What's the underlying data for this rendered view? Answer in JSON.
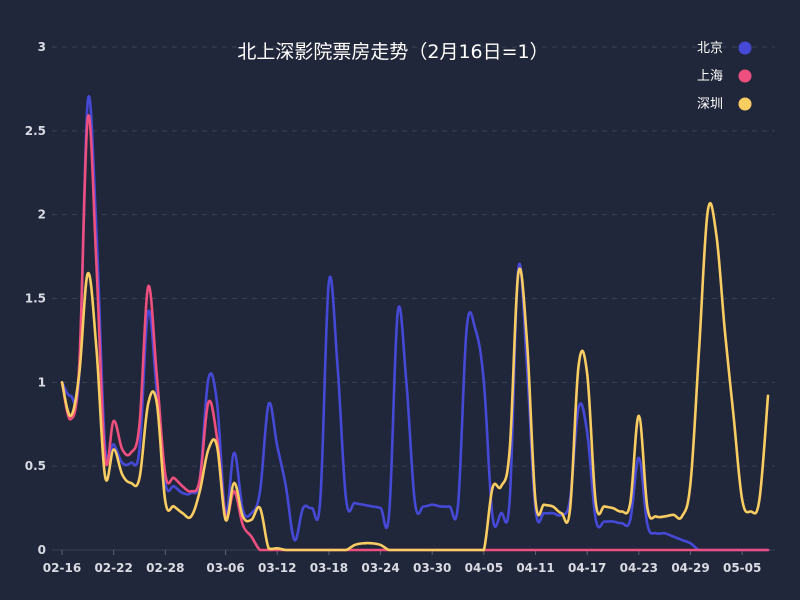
{
  "chart_data": {
    "type": "line",
    "title": "北上深影院票房走势（2月16日=1）",
    "xlabel": "",
    "ylabel": "",
    "ylim": [
      0,
      3
    ],
    "yticks": [
      "0",
      "0.5",
      "1",
      "1.5",
      "2",
      "2.5",
      "3"
    ],
    "grid": true,
    "legend_position": "top-right",
    "x_tick_labels": [
      "02-16",
      "02-22",
      "02-28",
      "03-06",
      "03-12",
      "03-18",
      "03-24",
      "03-30",
      "04-05",
      "04-11",
      "04-17",
      "04-23",
      "04-29",
      "05-05"
    ],
    "x": [
      "02-16",
      "02-17",
      "02-18",
      "02-19",
      "02-20",
      "02-21",
      "02-22",
      "02-23",
      "02-24",
      "02-25",
      "02-26",
      "02-27",
      "02-28",
      "02-29",
      "03-01",
      "03-02",
      "03-03",
      "03-04",
      "03-05",
      "03-06",
      "03-07",
      "03-08",
      "03-09",
      "03-10",
      "03-11",
      "03-12",
      "03-13",
      "03-14",
      "03-15",
      "03-16",
      "03-17",
      "03-18",
      "03-19",
      "03-20",
      "03-21",
      "03-22",
      "03-23",
      "03-24",
      "03-25",
      "03-26",
      "03-27",
      "03-28",
      "03-29",
      "03-30",
      "03-31",
      "04-01",
      "04-02",
      "04-03",
      "04-04",
      "04-05",
      "04-06",
      "04-07",
      "04-08",
      "04-09",
      "04-10",
      "04-11",
      "04-12",
      "04-13",
      "04-14",
      "04-15",
      "04-16",
      "04-17",
      "04-18",
      "04-19",
      "04-20",
      "04-21",
      "04-22",
      "04-23",
      "04-24",
      "04-25",
      "04-26",
      "04-27",
      "04-28",
      "04-29",
      "04-30",
      "05-01",
      "05-02",
      "05-03",
      "05-04",
      "05-05",
      "05-06",
      "05-07",
      "05-08"
    ],
    "series": [
      {
        "name": "北京",
        "color": "#4549d6",
        "values": [
          1.0,
          0.92,
          1.05,
          2.68,
          1.9,
          0.62,
          0.63,
          0.52,
          0.52,
          0.6,
          1.42,
          0.95,
          0.4,
          0.38,
          0.34,
          0.34,
          0.42,
          1.02,
          0.88,
          0.22,
          0.58,
          0.24,
          0.22,
          0.35,
          0.87,
          0.62,
          0.38,
          0.06,
          0.25,
          0.25,
          0.3,
          1.6,
          1.1,
          0.3,
          0.28,
          0.27,
          0.26,
          0.25,
          0.22,
          1.42,
          1.0,
          0.28,
          0.26,
          0.27,
          0.26,
          0.26,
          0.27,
          1.32,
          1.32,
          1.0,
          0.2,
          0.22,
          0.3,
          1.68,
          1.1,
          0.24,
          0.22,
          0.22,
          0.21,
          0.3,
          0.85,
          0.7,
          0.18,
          0.17,
          0.17,
          0.16,
          0.18,
          0.55,
          0.15,
          0.1,
          0.1,
          0.08,
          0.06,
          0.04,
          0.0,
          0.0,
          0.0,
          0.0,
          0.0,
          0.0,
          0.0,
          0.0,
          0.0
        ]
      },
      {
        "name": "上海",
        "color": "#ed4f7e",
        "values": [
          1.0,
          0.78,
          1.1,
          2.58,
          1.7,
          0.55,
          0.77,
          0.6,
          0.58,
          0.75,
          1.57,
          1.05,
          0.45,
          0.43,
          0.38,
          0.35,
          0.42,
          0.88,
          0.67,
          0.2,
          0.35,
          0.15,
          0.08,
          0.0,
          0.0,
          0.0,
          0.0,
          0.0,
          0.0,
          0.0,
          0.0,
          0.0,
          0.0,
          0.0,
          0.0,
          0.0,
          0.0,
          0.0,
          0.0,
          0.0,
          0.0,
          0.0,
          0.0,
          0.0,
          0.0,
          0.0,
          0.0,
          0.0,
          0.0,
          0.0,
          0.0,
          0.0,
          0.0,
          0.0,
          0.0,
          0.0,
          0.0,
          0.0,
          0.0,
          0.0,
          0.0,
          0.0,
          0.0,
          0.0,
          0.0,
          0.0,
          0.0,
          0.0,
          0.0,
          0.0,
          0.0,
          0.0,
          0.0,
          0.0,
          0.0,
          0.0,
          0.0,
          0.0,
          0.0,
          0.0,
          0.0,
          0.0,
          0.0
        ]
      },
      {
        "name": "深圳",
        "color": "#f9cd62",
        "values": [
          1.0,
          0.8,
          1.05,
          1.65,
          1.2,
          0.44,
          0.6,
          0.45,
          0.4,
          0.43,
          0.87,
          0.88,
          0.29,
          0.26,
          0.22,
          0.2,
          0.35,
          0.6,
          0.62,
          0.18,
          0.4,
          0.2,
          0.18,
          0.25,
          0.01,
          0.01,
          0.0,
          0.0,
          0.0,
          0.0,
          0.0,
          0.0,
          0.0,
          0.0,
          0.03,
          0.04,
          0.04,
          0.03,
          0.0,
          0.0,
          0.0,
          0.0,
          0.0,
          0.0,
          0.0,
          0.0,
          0.0,
          0.0,
          0.0,
          0.0,
          0.37,
          0.38,
          0.6,
          1.65,
          1.25,
          0.29,
          0.27,
          0.26,
          0.22,
          0.24,
          1.1,
          1.05,
          0.28,
          0.26,
          0.25,
          0.23,
          0.28,
          0.8,
          0.25,
          0.2,
          0.2,
          0.21,
          0.2,
          0.4,
          1.2,
          2.02,
          1.88,
          1.3,
          0.8,
          0.3,
          0.23,
          0.3,
          0.92
        ]
      }
    ]
  }
}
